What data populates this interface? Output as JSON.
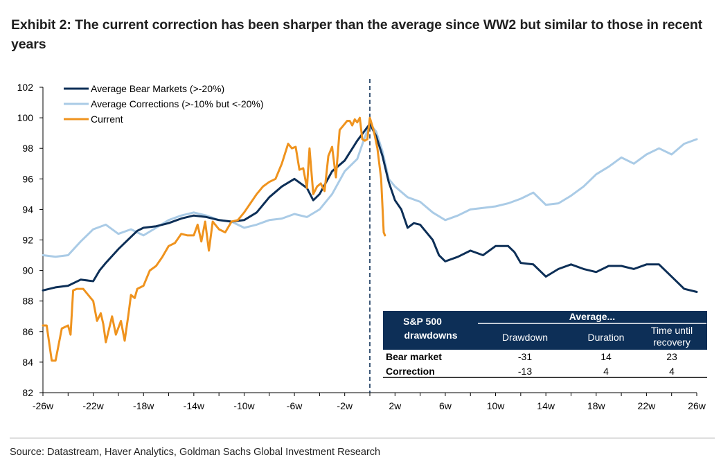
{
  "title": "Exhibit 2: The current correction has been sharper than the average since WW2 but similar to those in recent years",
  "source": "Source: Datastream, Haver Analytics, Goldman Sachs Global Investment Research",
  "colors": {
    "bear": "#0d2f57",
    "correction": "#aacbe6",
    "current": "#ef931e",
    "table_header": "#0d2f57"
  },
  "chart_data": {
    "type": "line",
    "ylim": [
      82,
      102
    ],
    "xlim": [
      -26,
      26
    ],
    "yticks": [
      "82",
      "84",
      "86",
      "88",
      "90",
      "92",
      "94",
      "96",
      "98",
      "100",
      "102"
    ],
    "xticks": [
      "-26w",
      "-22w",
      "-18w",
      "-14w",
      "-10w",
      "-6w",
      "-2w",
      "2w",
      "6w",
      "10w",
      "14w",
      "18w",
      "22w",
      "26w"
    ],
    "xtick_values": [
      -26,
      -22,
      -18,
      -14,
      -10,
      -6,
      -2,
      2,
      6,
      10,
      14,
      18,
      22,
      26
    ],
    "vline_x": 0,
    "grid": false,
    "legend_position": "top-left",
    "series": [
      {
        "name": "Average Bear Markets (>-20%)",
        "x": [
          -26,
          -25,
          -24,
          -23,
          -22,
          -21.5,
          -21,
          -20,
          -19,
          -18.5,
          -18,
          -17,
          -16,
          -15,
          -14,
          -13,
          -12,
          -11,
          -10,
          -9,
          -8,
          -7,
          -6,
          -5,
          -4.5,
          -4,
          -3,
          -2,
          -1,
          0,
          0.5,
          1,
          1.5,
          2,
          2.5,
          3,
          3.5,
          4,
          5,
          5.5,
          6,
          7,
          8,
          9,
          10,
          11,
          11.5,
          12,
          13,
          14,
          15,
          16,
          17,
          18,
          19,
          20,
          21,
          22,
          23,
          24,
          25,
          26
        ],
        "y": [
          88.7,
          88.9,
          89.0,
          89.4,
          89.3,
          90.0,
          90.5,
          91.4,
          92.2,
          92.6,
          92.8,
          92.9,
          93.1,
          93.4,
          93.6,
          93.5,
          93.3,
          93.2,
          93.3,
          93.8,
          94.8,
          95.5,
          96.0,
          95.4,
          94.6,
          95.0,
          96.5,
          97.2,
          98.5,
          99.6,
          98.8,
          97.5,
          95.8,
          94.6,
          94.0,
          92.8,
          93.1,
          93.0,
          92.0,
          91.0,
          90.6,
          90.9,
          91.3,
          91.0,
          91.6,
          91.6,
          91.2,
          90.5,
          90.4,
          89.6,
          90.1,
          90.4,
          90.1,
          89.9,
          90.3,
          90.3,
          90.1,
          90.4,
          90.4,
          89.6,
          88.8,
          88.6
        ]
      },
      {
        "name": "Average Corrections (>-10% but <-20%)",
        "x": [
          -26,
          -25,
          -24,
          -23,
          -22,
          -21,
          -20,
          -19,
          -18,
          -17,
          -16,
          -15,
          -14,
          -13,
          -12,
          -11,
          -10,
          -9,
          -8,
          -7,
          -6,
          -5,
          -4,
          -3,
          -2,
          -1,
          -0.5,
          0,
          0.5,
          1,
          1.5,
          2,
          3,
          4,
          5,
          6,
          7,
          8,
          9,
          10,
          11,
          12,
          13,
          14,
          15,
          16,
          17,
          18,
          19,
          20,
          21,
          22,
          23,
          24,
          25,
          26
        ],
        "y": [
          91.0,
          90.9,
          91.0,
          91.9,
          92.7,
          93.0,
          92.4,
          92.7,
          92.3,
          92.8,
          93.3,
          93.6,
          93.8,
          93.6,
          93.3,
          93.2,
          92.8,
          93.0,
          93.3,
          93.4,
          93.7,
          93.5,
          94.0,
          95.0,
          96.5,
          97.3,
          98.5,
          99.6,
          99.1,
          97.8,
          96.0,
          95.5,
          94.8,
          94.5,
          93.8,
          93.3,
          93.6,
          94.0,
          94.1,
          94.2,
          94.4,
          94.7,
          95.1,
          94.3,
          94.4,
          94.9,
          95.5,
          96.3,
          96.8,
          97.4,
          97.0,
          97.6,
          98.0,
          97.6,
          98.3,
          98.6
        ]
      },
      {
        "name": "Current",
        "x": [
          -26,
          -25.7,
          -25.3,
          -25,
          -24.5,
          -24,
          -23.8,
          -23.6,
          -23.3,
          -22.8,
          -22,
          -21.7,
          -21.4,
          -21.2,
          -21.0,
          -20.5,
          -20.2,
          -19.8,
          -19.5,
          -19.2,
          -19,
          -18.7,
          -18.5,
          -18.0,
          -17.5,
          -17,
          -16.5,
          -16,
          -15.5,
          -15,
          -14.5,
          -14,
          -13.7,
          -13.4,
          -13.1,
          -12.8,
          -12.5,
          -12,
          -11.5,
          -11,
          -10.5,
          -10,
          -9.5,
          -9,
          -8.5,
          -8,
          -7.5,
          -7,
          -6.5,
          -6.2,
          -5.9,
          -5.6,
          -5.3,
          -5.0,
          -4.8,
          -4.5,
          -4.2,
          -3.9,
          -3.6,
          -3.3,
          -3.0,
          -2.7,
          -2.4,
          -2.1,
          -1.8,
          -1.6,
          -1.4,
          -1.2,
          -1.0,
          -0.8,
          -0.6,
          -0.4,
          -0.2,
          0,
          0.3,
          0.6,
          0.9,
          1.1,
          1.2
        ],
        "y": [
          86.4,
          86.4,
          84.1,
          84.1,
          86.2,
          86.4,
          85.8,
          88.7,
          88.8,
          88.8,
          88.0,
          86.7,
          87.2,
          86.5,
          85.3,
          87.0,
          85.8,
          86.7,
          85.4,
          87.1,
          88.4,
          88.2,
          88.8,
          89.0,
          90.0,
          90.3,
          90.9,
          91.6,
          91.8,
          92.4,
          92.3,
          92.3,
          93.0,
          91.9,
          93.2,
          91.3,
          93.2,
          92.7,
          92.5,
          93.2,
          93.3,
          93.8,
          94.4,
          95.0,
          95.5,
          95.8,
          96.0,
          97.0,
          98.3,
          98.0,
          98.1,
          96.6,
          96.7,
          95.4,
          98.0,
          95.0,
          95.5,
          95.7,
          95.2,
          97.5,
          98.1,
          96.1,
          99.2,
          99.5,
          99.8,
          99.8,
          99.5,
          99.9,
          99.7,
          100.0,
          98.6,
          98.5,
          98.6,
          100.0,
          99.2,
          98.0,
          96.0,
          92.5,
          92.3
        ]
      }
    ],
    "table": {
      "corner_label": "S&P 500 drawdowns",
      "group_header": "Average...",
      "columns": [
        "Drawdown",
        "Duration",
        "Time until recovery"
      ],
      "rows": [
        {
          "label": "Bear market",
          "values": [
            "-31",
            "14",
            "23"
          ]
        },
        {
          "label": "Correction",
          "values": [
            "-13",
            "4",
            "4"
          ]
        }
      ]
    }
  }
}
